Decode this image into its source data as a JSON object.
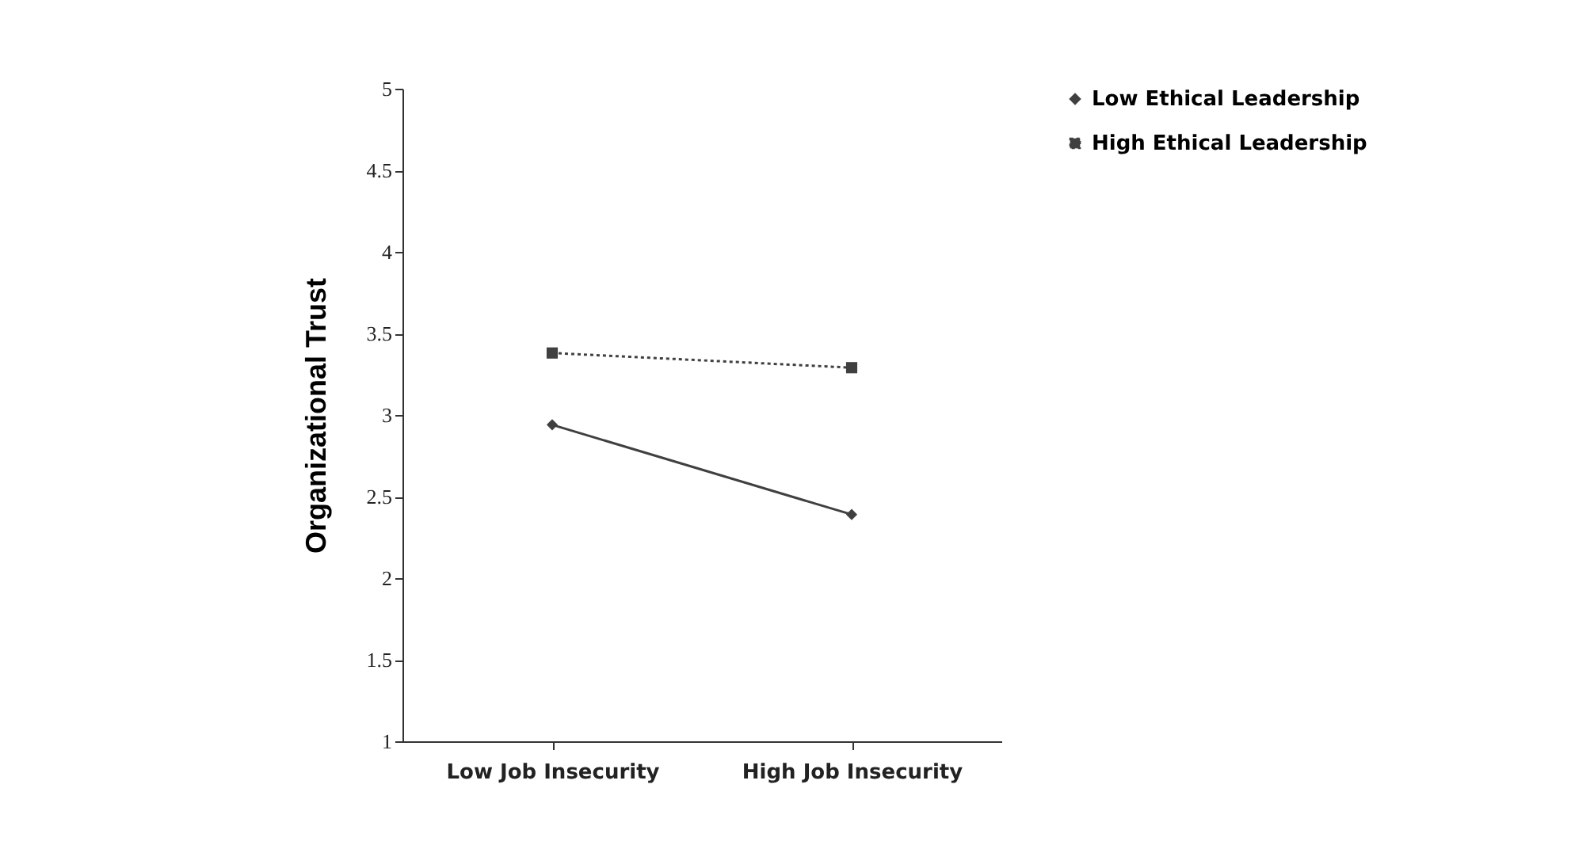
{
  "chart_data": {
    "type": "line",
    "ylabel": "Organizational Trust",
    "categories": [
      "Low Job Insecurity",
      "High Job Insecurity"
    ],
    "series": [
      {
        "name": "Low Ethical Leadership",
        "color": "#404040",
        "values": [
          2.94,
          2.39
        ],
        "marker": "diamond",
        "line_style": "solid"
      },
      {
        "name": "High Ethical Leadership",
        "color": "#404040",
        "values": [
          3.38,
          3.29
        ],
        "marker": "square",
        "line_style": "dotted"
      }
    ],
    "ylim": [
      1,
      5
    ],
    "yticks": [
      1,
      1.5,
      2,
      2.5,
      3,
      3.5,
      4,
      4.5,
      5
    ],
    "grid": false,
    "legend": "right"
  }
}
